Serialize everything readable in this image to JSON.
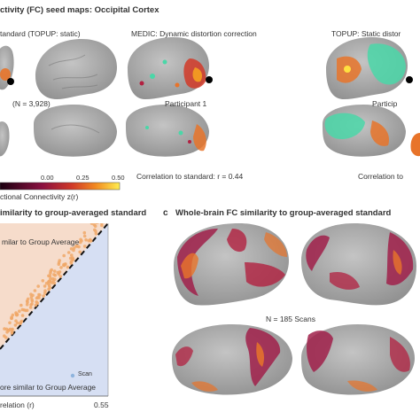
{
  "figure": {
    "panel_a": {
      "title": "ctivity (FC) seed maps: Occipital Cortex",
      "col_standard": "tandard (TOPUP: static)",
      "col_medic": "MEDIC: Dynamic distortion correction",
      "col_topup": "TOPUP: Static distor",
      "group_n": "(N = 3,928)",
      "participant_medic": "Participant 1",
      "participant_topup": "Particip",
      "correlation_medic": "Correlation to standard: r = 0.44",
      "correlation_topup": "Correlation to",
      "colorbar_ticks": [
        "0.00",
        "0.25",
        "0.50"
      ],
      "colorbar_label": "ctional Connectivity z(r)"
    },
    "panel_b": {
      "title": "imilarity to group-averaged standard",
      "upper_label": "milar to Group Average",
      "lower_label": "ore similar to Group Average",
      "legend": "Scan",
      "x_label": "relation (r)",
      "x_max_tick": "0.55"
    },
    "panel_c": {
      "letter": "c",
      "title": "Whole-brain FC similarity to group-averaged standard",
      "n_label": "N = 185 Scans"
    },
    "colors": {
      "brain": "#a8a8a8",
      "hot_low": "#b22040",
      "hot_mid": "#e8742a",
      "hot_high": "#ffe040",
      "cool": "#4ad7a8",
      "upper_bg": "#f6dccb",
      "lower_bg": "#d6dff3",
      "scatter_point": "#f0a868"
    }
  }
}
